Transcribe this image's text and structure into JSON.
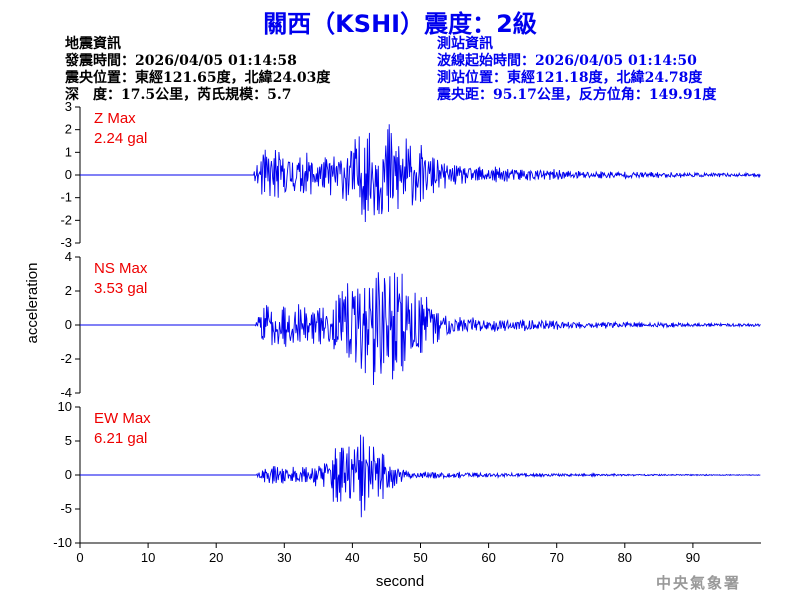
{
  "title": "關西（KSHI）震度：2級",
  "quake_info": {
    "heading": "地震資訊",
    "origin_time": "發震時間：2026/04/05 01:14:58",
    "epicenter": "震央位置：東經121.65度，北緯24.03度",
    "depth_magnitude": "深　度：17.5公里，芮氏規模：5.7"
  },
  "station_info": {
    "heading": "測站資訊",
    "wave_start": "波線起始時間：2026/04/05 01:14:50",
    "location": "測站位置：東經121.18度，北緯24.78度",
    "distance_azimuth": "震央距：95.17公里，反方位角：149.91度"
  },
  "credit": "中央氣象署",
  "chart_data": {
    "type": "line",
    "xlabel": "second",
    "ylabel": "acceleration",
    "xlim": [
      0,
      100
    ],
    "xticks": [
      0,
      10,
      20,
      30,
      40,
      50,
      60,
      70,
      80,
      90
    ],
    "line_color": "#0000ee",
    "label_color": "#ee0000",
    "panels": [
      {
        "component": "Z",
        "label": "Z Max",
        "max_value": "2.24 gal",
        "ylim": [
          -3,
          3
        ],
        "yticks": [
          3,
          2,
          1,
          0,
          -1,
          -2,
          -3
        ],
        "samples_per_second": 10,
        "values": []
      },
      {
        "component": "NS",
        "label": "NS Max",
        "max_value": "3.53 gal",
        "ylim": [
          -4,
          4
        ],
        "yticks": [
          4,
          2,
          0,
          -2,
          -4
        ],
        "samples_per_second": 10,
        "values": []
      },
      {
        "component": "EW",
        "label": "EW Max",
        "max_value": "6.21 gal",
        "ylim": [
          -10,
          10
        ],
        "yticks": [
          10,
          5,
          0,
          -5,
          -10
        ],
        "samples_per_second": 10,
        "values": []
      }
    ]
  }
}
